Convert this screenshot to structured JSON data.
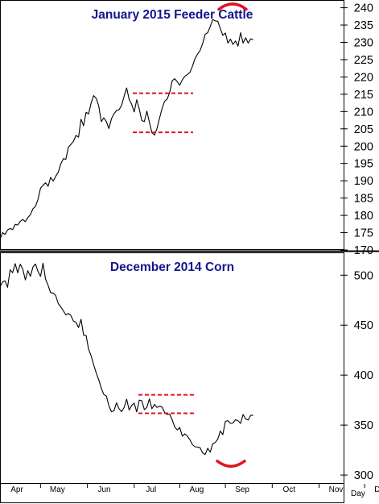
{
  "chart_data": [
    {
      "type": "line",
      "title": "January 2015 Feeder Cattle",
      "ylim": [
        170,
        242
      ],
      "yticks": [
        170,
        175,
        180,
        185,
        190,
        195,
        200,
        205,
        210,
        215,
        220,
        225,
        230,
        235,
        240
      ],
      "grid": false,
      "colors": {
        "line": "#000000",
        "annotation": "#e0141e",
        "title": "#14148c"
      },
      "series": [
        {
          "x": [
            0,
            2,
            4,
            6,
            8,
            10,
            12,
            14,
            16,
            18,
            20,
            22,
            24,
            26,
            28,
            30,
            32,
            34,
            36,
            38,
            40,
            42,
            44,
            46,
            48,
            50,
            52,
            54,
            56,
            58,
            60,
            62,
            64,
            66,
            68,
            70,
            72,
            74,
            76,
            78,
            80,
            82,
            84,
            86,
            88,
            90,
            92,
            94,
            96,
            98,
            100,
            102,
            104,
            106,
            108,
            110,
            112,
            114,
            116,
            118,
            120,
            122,
            124,
            126,
            128,
            130,
            132,
            134,
            136,
            138,
            140,
            142,
            144,
            146,
            148,
            150,
            152,
            154,
            156,
            158,
            160,
            162,
            164,
            166,
            168,
            170,
            172,
            174,
            176,
            178,
            180,
            182,
            184,
            186,
            188,
            190,
            192,
            194,
            196,
            198,
            200
          ],
          "values": [
            173.0,
            175.0,
            174.5,
            175.8,
            176.2,
            175.9,
            177.4,
            177.2,
            178.3,
            178.8,
            178.2,
            179.4,
            180.2,
            181.9,
            182.6,
            184.6,
            187.9,
            188.7,
            189.4,
            188.4,
            191.0,
            189.9,
            191.3,
            192.5,
            194.8,
            196.4,
            196.2,
            199.7,
            200.5,
            201.4,
            203.1,
            202.6,
            207.8,
            205.9,
            209.8,
            209.3,
            212.5,
            214.6,
            213.8,
            211.6,
            207.1,
            208.2,
            207.1,
            205.1,
            207.9,
            209.3,
            210.3,
            210.5,
            211.8,
            214.4,
            216.8,
            213.5,
            212.1,
            209.9,
            213.4,
            210.7,
            207.4,
            207.1,
            210.1,
            206.9,
            203.9,
            203.2,
            205.1,
            208.1,
            210.9,
            213.0,
            213.6,
            215.5,
            218.9,
            219.5,
            218.6,
            217.6,
            219.2,
            220.2,
            220.7,
            221.3,
            223.1,
            225.3,
            226.6,
            227.6,
            229.6,
            232.3,
            232.8,
            234.5,
            236.6,
            236.2,
            236.1,
            234.0,
            232.0,
            232.7,
            229.8,
            230.9,
            229.4,
            230.4,
            228.9,
            232.8,
            229.8,
            231.3,
            229.8,
            231.0,
            230.8
          ]
        }
      ],
      "annotations": {
        "range_lines": [
          215.3,
          204.0
        ],
        "top_arc_near": 237
      }
    },
    {
      "type": "line",
      "title": "December 2014 Corn",
      "ylim": [
        292,
        522
      ],
      "yticks": [
        300,
        350,
        400,
        450,
        500
      ],
      "grid": false,
      "colors": {
        "line": "#000000",
        "annotation": "#e0141e",
        "title": "#14148c"
      },
      "series": [
        {
          "x": [
            0,
            2,
            4,
            6,
            8,
            10,
            12,
            14,
            16,
            18,
            20,
            22,
            24,
            26,
            28,
            30,
            32,
            34,
            36,
            38,
            40,
            42,
            44,
            46,
            48,
            50,
            52,
            54,
            56,
            58,
            60,
            62,
            64,
            66,
            68,
            70,
            72,
            74,
            76,
            78,
            80,
            82,
            84,
            86,
            88,
            90,
            92,
            94,
            96,
            98,
            100,
            102,
            104,
            106,
            108,
            110,
            112,
            114,
            116,
            118,
            120,
            122,
            124,
            126,
            128,
            130,
            132,
            134,
            136,
            138,
            140,
            142,
            144,
            146,
            148,
            150,
            152,
            154,
            156,
            158,
            160,
            162,
            164,
            166,
            168,
            170,
            172,
            174,
            176,
            178,
            180,
            182,
            184,
            186,
            188,
            190,
            192,
            194,
            196,
            198,
            200
          ],
          "values": [
            488.4,
            493.0,
            494.4,
            487.9,
            505.4,
            502.5,
            511.6,
            502.4,
            511.0,
            506.1,
            495.3,
            504.5,
            498.8,
            508.1,
            511.2,
            503.8,
            498.8,
            512.0,
            496.0,
            489.8,
            482.5,
            482.1,
            479.6,
            471.6,
            468.4,
            464.4,
            460.3,
            461.7,
            459.7,
            454.0,
            452.9,
            447.6,
            455.8,
            440.0,
            439.7,
            425.9,
            419.3,
            410.3,
            402.1,
            395.5,
            386.8,
            380.6,
            379.1,
            369.4,
            363.3,
            364.2,
            372.4,
            366.4,
            363.4,
            367.5,
            375.9,
            365.0,
            369.7,
            371.9,
            363.2,
            375.0,
            374.4,
            365.4,
            367.8,
            376.2,
            366.3,
            370.7,
            367.7,
            368.8,
            368.0,
            362.7,
            360.6,
            360.9,
            355.3,
            348.1,
            345.1,
            347.5,
            339.0,
            341.2,
            338.9,
            335.3,
            330.3,
            328.3,
            327.9,
            327.4,
            322.2,
            320.5,
            326.8,
            322.9,
            331.3,
            332.6,
            335.8,
            344.0,
            340.4,
            353.7,
            354.5,
            351.7,
            352.0,
            355.4,
            354.3,
            351.6,
            360.6,
            356.1,
            355.0,
            359.8,
            359.7
          ]
        }
      ],
      "annotations": {
        "range_lines": [
          380.3,
          361.8
        ],
        "bottom_arc_near": 318
      }
    }
  ],
  "x_axis": {
    "labels": [
      "Apr",
      "May",
      "Jun",
      "Jul",
      "Aug",
      "Sep",
      "Oct",
      "Nov",
      "Dec"
    ],
    "unit": "Day",
    "range": [
      0,
      272
    ],
    "label_positions": [
      0,
      32,
      69,
      106,
      142,
      178,
      215,
      252,
      288
    ]
  }
}
